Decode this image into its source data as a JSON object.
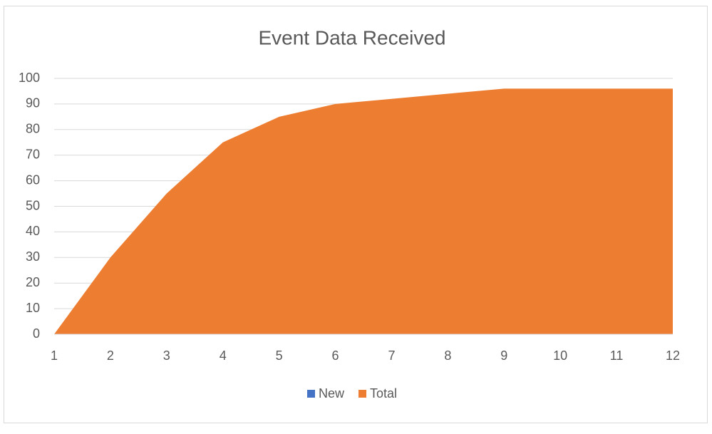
{
  "chart_data": {
    "type": "area",
    "title": "Event Data Received",
    "categories": [
      "1",
      "2",
      "3",
      "4",
      "5",
      "6",
      "7",
      "8",
      "9",
      "10",
      "11",
      "12"
    ],
    "series": [
      {
        "name": "New",
        "color": "#4472c4",
        "values": [
          null,
          null,
          null,
          null,
          null,
          null,
          null,
          null,
          null,
          null,
          null,
          null
        ]
      },
      {
        "name": "Total",
        "color": "#ed7d31",
        "values": [
          0,
          30,
          55,
          75,
          85,
          90,
          92,
          94,
          96,
          96,
          96,
          96
        ]
      }
    ],
    "ylim": [
      0,
      100
    ],
    "yticks": [
      0,
      10,
      20,
      30,
      40,
      50,
      60,
      70,
      80,
      90,
      100
    ],
    "grid": true,
    "legend": "bottom"
  }
}
